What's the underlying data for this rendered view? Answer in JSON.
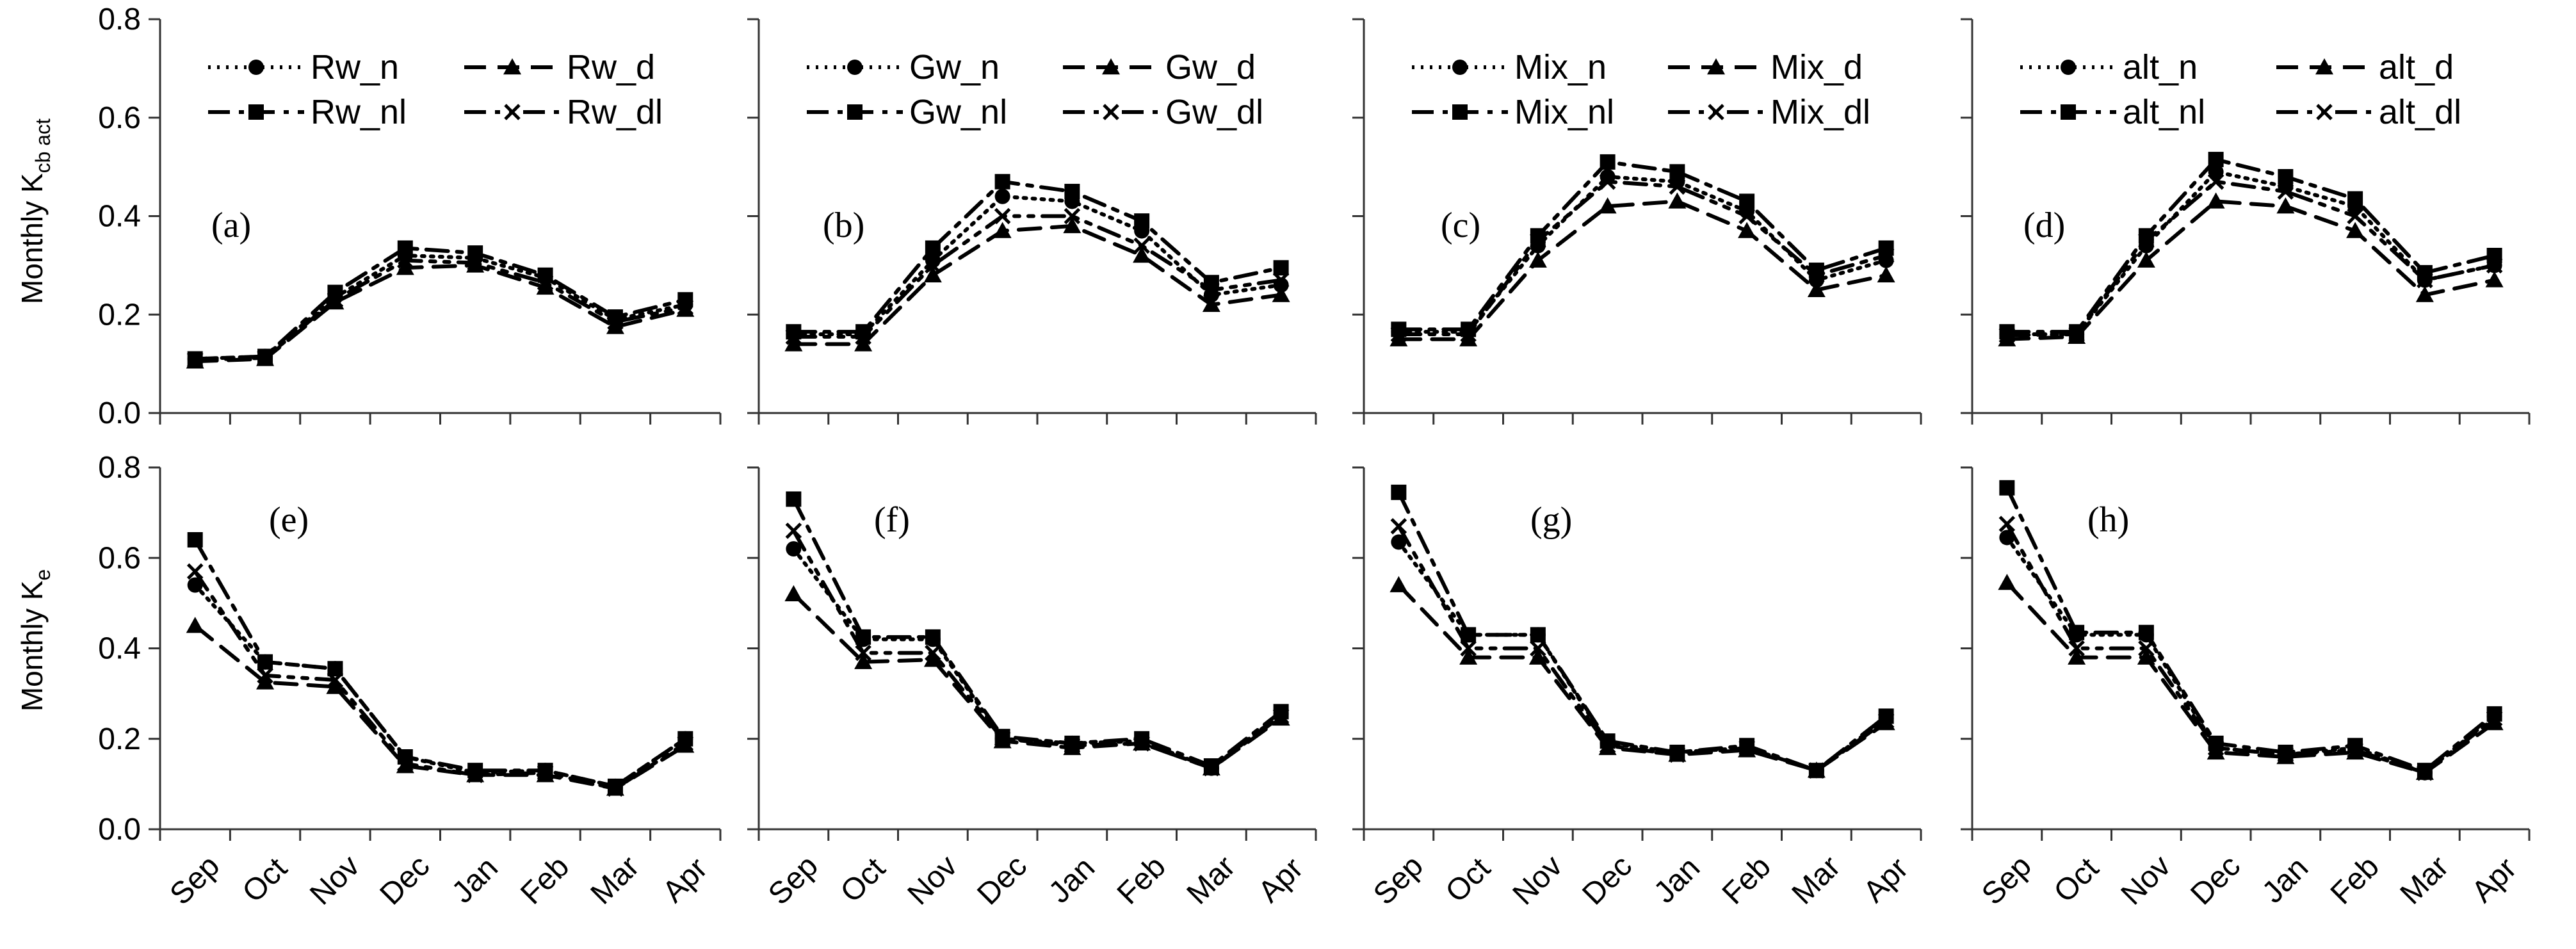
{
  "figure": {
    "ylabel_top": "Monthly K",
    "ylabel_top_sub": "cb act",
    "ylabel_bottom": "Monthly K",
    "ylabel_bottom_sub": "e",
    "months": [
      "Sep",
      "Oct",
      "Nov",
      "Dec",
      "Jan",
      "Feb",
      "Mar",
      "Apr"
    ],
    "yticks": [
      "0.0",
      "0.2",
      "0.4",
      "0.6",
      "0.8"
    ]
  },
  "chart_data": [
    {
      "type": "line",
      "panel_label": "(a)",
      "title": "",
      "xlabel": "",
      "ylabel": "Monthly K cb act",
      "categories": [
        "Sep",
        "Oct",
        "Nov",
        "Dec",
        "Jan",
        "Feb",
        "Mar",
        "Apr"
      ],
      "ylim": [
        0,
        0.8
      ],
      "legend_position": "top",
      "series": [
        {
          "name": "Rw_n",
          "style": "n",
          "values": [
            0.11,
            0.115,
            0.235,
            0.32,
            0.315,
            0.275,
            0.19,
            0.22
          ]
        },
        {
          "name": "Rw_d",
          "style": "d",
          "values": [
            0.105,
            0.11,
            0.225,
            0.295,
            0.3,
            0.255,
            0.175,
            0.21
          ]
        },
        {
          "name": "Rw_nl",
          "style": "nl",
          "values": [
            0.11,
            0.115,
            0.245,
            0.335,
            0.325,
            0.28,
            0.195,
            0.23
          ]
        },
        {
          "name": "Rw_dl",
          "style": "dl",
          "values": [
            0.108,
            0.112,
            0.23,
            0.31,
            0.305,
            0.265,
            0.185,
            0.215
          ]
        }
      ]
    },
    {
      "type": "line",
      "panel_label": "(b)",
      "title": "",
      "xlabel": "",
      "ylabel": "",
      "categories": [
        "Sep",
        "Oct",
        "Nov",
        "Dec",
        "Jan",
        "Feb",
        "Mar",
        "Apr"
      ],
      "ylim": [
        0,
        0.8
      ],
      "legend_position": "top",
      "series": [
        {
          "name": "Gw_n",
          "style": "n",
          "values": [
            0.16,
            0.16,
            0.31,
            0.44,
            0.43,
            0.37,
            0.24,
            0.26
          ]
        },
        {
          "name": "Gw_d",
          "style": "d",
          "values": [
            0.14,
            0.14,
            0.28,
            0.37,
            0.38,
            0.32,
            0.22,
            0.24
          ]
        },
        {
          "name": "Gw_nl",
          "style": "nl",
          "values": [
            0.165,
            0.165,
            0.335,
            0.47,
            0.45,
            0.39,
            0.265,
            0.295
          ]
        },
        {
          "name": "Gw_dl",
          "style": "dl",
          "values": [
            0.155,
            0.155,
            0.3,
            0.4,
            0.4,
            0.34,
            0.25,
            0.27
          ]
        }
      ]
    },
    {
      "type": "line",
      "panel_label": "(c)",
      "title": "",
      "xlabel": "",
      "ylabel": "",
      "categories": [
        "Sep",
        "Oct",
        "Nov",
        "Dec",
        "Jan",
        "Feb",
        "Mar",
        "Apr"
      ],
      "ylim": [
        0,
        0.8
      ],
      "legend_position": "top",
      "series": [
        {
          "name": "Mix_n",
          "style": "n",
          "values": [
            0.165,
            0.165,
            0.34,
            0.48,
            0.47,
            0.41,
            0.27,
            0.31
          ]
        },
        {
          "name": "Mix_d",
          "style": "d",
          "values": [
            0.15,
            0.15,
            0.31,
            0.42,
            0.43,
            0.37,
            0.25,
            0.28
          ]
        },
        {
          "name": "Mix_nl",
          "style": "nl",
          "values": [
            0.17,
            0.17,
            0.36,
            0.51,
            0.49,
            0.43,
            0.29,
            0.335
          ]
        },
        {
          "name": "Mix_dl",
          "style": "dl",
          "values": [
            0.16,
            0.16,
            0.35,
            0.47,
            0.46,
            0.4,
            0.28,
            0.32
          ]
        }
      ]
    },
    {
      "type": "line",
      "panel_label": "(d)",
      "title": "",
      "xlabel": "",
      "ylabel": "",
      "categories": [
        "Sep",
        "Oct",
        "Nov",
        "Dec",
        "Jan",
        "Feb",
        "Mar",
        "Apr"
      ],
      "ylim": [
        0,
        0.8
      ],
      "legend_position": "top",
      "series": [
        {
          "name": "alt_n",
          "style": "n",
          "values": [
            0.16,
            0.16,
            0.34,
            0.49,
            0.46,
            0.42,
            0.27,
            0.3
          ]
        },
        {
          "name": "alt_d",
          "style": "d",
          "values": [
            0.15,
            0.155,
            0.31,
            0.43,
            0.42,
            0.37,
            0.24,
            0.27
          ]
        },
        {
          "name": "alt_nl",
          "style": "nl",
          "values": [
            0.165,
            0.165,
            0.36,
            0.515,
            0.48,
            0.435,
            0.285,
            0.32
          ]
        },
        {
          "name": "alt_dl",
          "style": "dl",
          "values": [
            0.158,
            0.16,
            0.35,
            0.47,
            0.45,
            0.4,
            0.27,
            0.3
          ]
        }
      ]
    },
    {
      "type": "line",
      "panel_label": "(e)",
      "title": "",
      "xlabel": "",
      "ylabel": "Monthly K e",
      "categories": [
        "Sep",
        "Oct",
        "Nov",
        "Dec",
        "Jan",
        "Feb",
        "Mar",
        "Apr"
      ],
      "ylim": [
        0,
        0.8
      ],
      "series": [
        {
          "name": "Rw_n",
          "style": "n",
          "values": [
            0.54,
            0.37,
            0.355,
            0.16,
            0.125,
            0.13,
            0.095,
            0.2
          ]
        },
        {
          "name": "Rw_d",
          "style": "d",
          "values": [
            0.45,
            0.325,
            0.315,
            0.14,
            0.12,
            0.12,
            0.09,
            0.185
          ]
        },
        {
          "name": "Rw_nl",
          "style": "nl",
          "values": [
            0.64,
            0.37,
            0.355,
            0.16,
            0.13,
            0.13,
            0.095,
            0.2
          ]
        },
        {
          "name": "Rw_dl",
          "style": "dl",
          "values": [
            0.57,
            0.34,
            0.33,
            0.145,
            0.12,
            0.125,
            0.09,
            0.19
          ]
        }
      ]
    },
    {
      "type": "line",
      "panel_label": "(f)",
      "title": "",
      "xlabel": "",
      "ylabel": "",
      "categories": [
        "Sep",
        "Oct",
        "Nov",
        "Dec",
        "Jan",
        "Feb",
        "Mar",
        "Apr"
      ],
      "ylim": [
        0,
        0.8
      ],
      "series": [
        {
          "name": "Gw_n",
          "style": "n",
          "values": [
            0.62,
            0.42,
            0.42,
            0.2,
            0.19,
            0.195,
            0.135,
            0.255
          ]
        },
        {
          "name": "Gw_d",
          "style": "d",
          "values": [
            0.52,
            0.37,
            0.375,
            0.195,
            0.18,
            0.19,
            0.135,
            0.245
          ]
        },
        {
          "name": "Gw_nl",
          "style": "nl",
          "values": [
            0.73,
            0.425,
            0.425,
            0.205,
            0.19,
            0.2,
            0.14,
            0.26
          ]
        },
        {
          "name": "Gw_dl",
          "style": "dl",
          "values": [
            0.66,
            0.39,
            0.39,
            0.2,
            0.185,
            0.19,
            0.135,
            0.25
          ]
        }
      ]
    },
    {
      "type": "line",
      "panel_label": "(g)",
      "title": "",
      "xlabel": "",
      "ylabel": "",
      "categories": [
        "Sep",
        "Oct",
        "Nov",
        "Dec",
        "Jan",
        "Feb",
        "Mar",
        "Apr"
      ],
      "ylim": [
        0,
        0.8
      ],
      "series": [
        {
          "name": "Mix_n",
          "style": "n",
          "values": [
            0.635,
            0.43,
            0.43,
            0.19,
            0.17,
            0.18,
            0.13,
            0.245
          ]
        },
        {
          "name": "Mix_d",
          "style": "d",
          "values": [
            0.54,
            0.38,
            0.38,
            0.18,
            0.165,
            0.175,
            0.13,
            0.235
          ]
        },
        {
          "name": "Mix_nl",
          "style": "nl",
          "values": [
            0.745,
            0.43,
            0.43,
            0.195,
            0.17,
            0.185,
            0.13,
            0.25
          ]
        },
        {
          "name": "Mix_dl",
          "style": "dl",
          "values": [
            0.67,
            0.4,
            0.4,
            0.185,
            0.165,
            0.18,
            0.13,
            0.24
          ]
        }
      ]
    },
    {
      "type": "line",
      "panel_label": "(h)",
      "title": "",
      "xlabel": "",
      "ylabel": "",
      "categories": [
        "Sep",
        "Oct",
        "Nov",
        "Dec",
        "Jan",
        "Feb",
        "Mar",
        "Apr"
      ],
      "ylim": [
        0,
        0.8
      ],
      "series": [
        {
          "name": "alt_n",
          "style": "n",
          "values": [
            0.645,
            0.43,
            0.43,
            0.18,
            0.165,
            0.18,
            0.125,
            0.25
          ]
        },
        {
          "name": "alt_d",
          "style": "d",
          "values": [
            0.545,
            0.38,
            0.38,
            0.17,
            0.16,
            0.17,
            0.125,
            0.235
          ]
        },
        {
          "name": "alt_nl",
          "style": "nl",
          "values": [
            0.755,
            0.435,
            0.435,
            0.19,
            0.17,
            0.185,
            0.13,
            0.255
          ]
        },
        {
          "name": "alt_dl",
          "style": "dl",
          "values": [
            0.675,
            0.4,
            0.4,
            0.18,
            0.165,
            0.175,
            0.125,
            0.245
          ]
        }
      ]
    }
  ]
}
